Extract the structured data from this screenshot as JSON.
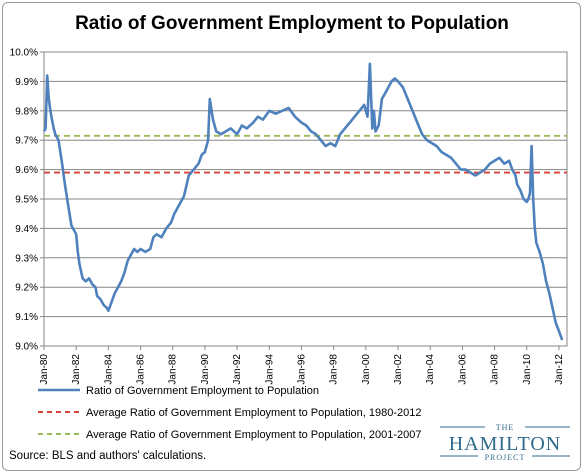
{
  "chart_data": {
    "type": "line",
    "title": "Ratio of Government Employment to Population",
    "xlabel": "",
    "ylabel": "",
    "ylim": [
      9.0,
      10.0
    ],
    "y_ticks": [
      "9.0%",
      "9.1%",
      "9.2%",
      "9.3%",
      "9.4%",
      "9.5%",
      "9.6%",
      "9.7%",
      "9.8%",
      "9.9%",
      "10.0%"
    ],
    "x_range": [
      1980.0,
      2012.5
    ],
    "x_ticks": [
      {
        "label": "Jan-80",
        "x": 1980
      },
      {
        "label": "Jan-82",
        "x": 1982
      },
      {
        "label": "Jan-84",
        "x": 1984
      },
      {
        "label": "Jan-86",
        "x": 1986
      },
      {
        "label": "Jan-88",
        "x": 1988
      },
      {
        "label": "Jan-90",
        "x": 1990
      },
      {
        "label": "Jan-92",
        "x": 1992
      },
      {
        "label": "Jan-94",
        "x": 1994
      },
      {
        "label": "Jan-96",
        "x": 1996
      },
      {
        "label": "Jan-98",
        "x": 1998
      },
      {
        "label": "Jan-00",
        "x": 2000
      },
      {
        "label": "Jan-02",
        "x": 2002
      },
      {
        "label": "Jan-04",
        "x": 2004
      },
      {
        "label": "Jan-06",
        "x": 2006
      },
      {
        "label": "Jan-08",
        "x": 2008
      },
      {
        "label": "Jan-10",
        "x": 2010
      },
      {
        "label": "Jan-12",
        "x": 2012
      }
    ],
    "grid": "horizontal",
    "legend_position": "bottom-left",
    "series": [
      {
        "name": "Ratio of Government Employment to Population",
        "color": "#4f81bd",
        "style": "solid",
        "x": [
          1980.0,
          1980.1,
          1980.2,
          1980.3,
          1980.4,
          1980.5,
          1980.6,
          1980.7,
          1980.9,
          1981.1,
          1981.3,
          1981.5,
          1981.7,
          1981.9,
          1982.0,
          1982.1,
          1982.2,
          1982.4,
          1982.6,
          1982.8,
          1983.0,
          1983.2,
          1983.3,
          1983.5,
          1983.7,
          1983.9,
          1984.0,
          1984.2,
          1984.4,
          1984.6,
          1984.8,
          1985.0,
          1985.2,
          1985.4,
          1985.6,
          1985.8,
          1986.0,
          1986.3,
          1986.6,
          1986.8,
          1987.0,
          1987.3,
          1987.6,
          1987.9,
          1988.1,
          1988.4,
          1988.7,
          1989.0,
          1989.3,
          1989.6,
          1989.8,
          1990.0,
          1990.2,
          1990.3,
          1990.5,
          1990.7,
          1991.0,
          1991.3,
          1991.6,
          1992.0,
          1992.3,
          1992.6,
          1993.0,
          1993.3,
          1993.6,
          1994.0,
          1994.4,
          1994.8,
          1995.2,
          1995.6,
          1996.0,
          1996.3,
          1996.6,
          1996.9,
          1997.2,
          1997.5,
          1997.8,
          1998.1,
          1998.4,
          1998.7,
          1999.0,
          1999.3,
          1999.6,
          1999.9,
          2000.1,
          2000.25,
          2000.4,
          2000.5,
          2000.6,
          2000.8,
          2001.0,
          2001.2,
          2001.4,
          2001.6,
          2001.8,
          2002.0,
          2002.3,
          2002.6,
          2002.9,
          2003.2,
          2003.5,
          2003.8,
          2004.1,
          2004.4,
          2004.7,
          2005.0,
          2005.3,
          2005.6,
          2005.9,
          2006.2,
          2006.5,
          2006.8,
          2007.1,
          2007.4,
          2007.7,
          2008.0,
          2008.3,
          2008.6,
          2008.9,
          2009.1,
          2009.3,
          2009.4,
          2009.6,
          2009.8,
          2010.0,
          2010.1,
          2010.2,
          2010.3,
          2010.4,
          2010.5,
          2010.6,
          2010.8,
          2011.0,
          2011.2,
          2011.4,
          2011.6,
          2011.8,
          2012.0,
          2012.2
        ],
        "values": [
          9.73,
          9.74,
          9.92,
          9.84,
          9.8,
          9.77,
          9.74,
          9.72,
          9.7,
          9.63,
          9.55,
          9.48,
          9.41,
          9.39,
          9.38,
          9.32,
          9.28,
          9.23,
          9.22,
          9.23,
          9.21,
          9.2,
          9.17,
          9.16,
          9.14,
          9.13,
          9.12,
          9.15,
          9.18,
          9.2,
          9.22,
          9.25,
          9.29,
          9.31,
          9.33,
          9.32,
          9.33,
          9.32,
          9.33,
          9.37,
          9.38,
          9.37,
          9.4,
          9.42,
          9.45,
          9.48,
          9.51,
          9.58,
          9.6,
          9.62,
          9.65,
          9.66,
          9.7,
          9.84,
          9.77,
          9.73,
          9.72,
          9.73,
          9.74,
          9.72,
          9.75,
          9.74,
          9.76,
          9.78,
          9.77,
          9.8,
          9.79,
          9.8,
          9.81,
          9.78,
          9.76,
          9.75,
          9.73,
          9.72,
          9.7,
          9.68,
          9.69,
          9.68,
          9.72,
          9.74,
          9.76,
          9.78,
          9.8,
          9.82,
          9.78,
          9.96,
          9.74,
          9.8,
          9.73,
          9.75,
          9.84,
          9.86,
          9.88,
          9.9,
          9.91,
          9.9,
          9.88,
          9.84,
          9.8,
          9.76,
          9.72,
          9.7,
          9.69,
          9.68,
          9.66,
          9.65,
          9.64,
          9.62,
          9.6,
          9.6,
          9.59,
          9.58,
          9.59,
          9.6,
          9.62,
          9.63,
          9.64,
          9.62,
          9.63,
          9.6,
          9.58,
          9.55,
          9.53,
          9.5,
          9.49,
          9.5,
          9.52,
          9.68,
          9.5,
          9.4,
          9.35,
          9.32,
          9.28,
          9.22,
          9.18,
          9.13,
          9.08,
          9.05,
          9.02
        ]
      },
      {
        "name": "Average Ratio of Government Employment to Population,  1980-2012",
        "color": "#d9413a",
        "style": "dashed",
        "constant": 9.59
      },
      {
        "name": "Average Ratio of Government Employment to Population,  2001-2007",
        "color": "#9bbb59",
        "style": "dashed",
        "constant": 9.715
      }
    ]
  },
  "source_note": "Source: BLS and authors' calculations.",
  "logo": {
    "top": "THE",
    "main": "HAMILTON",
    "bottom": "PROJECT",
    "color": "#2f6b8c"
  }
}
